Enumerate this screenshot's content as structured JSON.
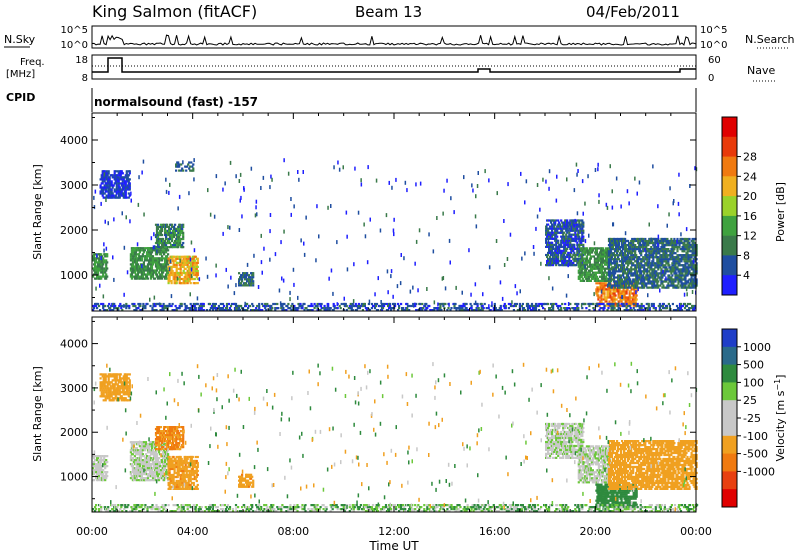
{
  "header": {
    "station": "King Salmon (fitACF)",
    "beam": "Beam 13",
    "date": "04/Feb/2011"
  },
  "top_panels": {
    "nsky_label": "N.Sky",
    "nsearch_label": "N.Search",
    "nsky_ticks": [
      "10^5",
      "10^0"
    ],
    "freq_label_1": "Freq.",
    "freq_label_2": "[MHz]",
    "freq_ticks": [
      "18",
      "8"
    ],
    "nave_label": "Nave",
    "nave_ticks": [
      "60",
      "0"
    ],
    "cpid_label": "CPID",
    "cpid_text": "normalsound (fast) -157"
  },
  "x_axis": {
    "label": "Time UT",
    "ticks": [
      "00:00",
      "04:00",
      "08:00",
      "12:00",
      "16:00",
      "20:00",
      "00:00"
    ]
  },
  "colors": {
    "power_scale": [
      "#1f1fff",
      "#1f4ea0",
      "#3a7a4a",
      "#3fa23f",
      "#9ad22a",
      "#f0b020",
      "#f07a10",
      "#e83a0a",
      "#e00000"
    ],
    "velocity_scale": [
      "#1f3ec8",
      "#2a6a8a",
      "#2e8a3e",
      "#6cc83a",
      "#c8c8c8",
      "#c8c8c8",
      "#f0a020",
      "#f07a10",
      "#e84010",
      "#e00000"
    ]
  },
  "chart_data": [
    {
      "type": "heatmap",
      "name": "power",
      "xlabel": "Time UT",
      "ylabel": "Slant Range [km]",
      "xlim": [
        0,
        24
      ],
      "ylim": [
        200,
        4600
      ],
      "yticks": [
        1000,
        2000,
        3000,
        4000
      ],
      "colorbar": {
        "label": "Power [dB]",
        "ticks": [
          "4",
          "8",
          "12",
          "16",
          "20",
          "24",
          "28"
        ],
        "range": [
          0,
          32
        ]
      },
      "regions": [
        {
          "t0": 0.0,
          "t1": 0.6,
          "r0": 900,
          "r1": 1450,
          "level": 12
        },
        {
          "t0": 0.3,
          "t1": 1.5,
          "r0": 2700,
          "r1": 3300,
          "level": 4
        },
        {
          "t0": 1.5,
          "t1": 3.0,
          "r0": 900,
          "r1": 1600,
          "level": 12
        },
        {
          "t0": 2.5,
          "t1": 3.6,
          "r0": 1600,
          "r1": 2100,
          "level": 10
        },
        {
          "t0": 3.0,
          "t1": 4.2,
          "r0": 800,
          "r1": 1400,
          "level": 22
        },
        {
          "t0": 3.3,
          "t1": 4.0,
          "r0": 3300,
          "r1": 3500,
          "level": 8
        },
        {
          "t0": 5.8,
          "t1": 6.4,
          "r0": 750,
          "r1": 1050,
          "level": 8
        },
        {
          "t0": 18.0,
          "t1": 19.5,
          "r0": 1200,
          "r1": 2200,
          "level": 6
        },
        {
          "t0": 19.3,
          "t1": 20.6,
          "r0": 850,
          "r1": 1600,
          "level": 12
        },
        {
          "t0": 20.0,
          "t1": 21.6,
          "r0": 300,
          "r1": 800,
          "level": 26
        },
        {
          "t0": 20.5,
          "t1": 24.0,
          "r0": 700,
          "r1": 1800,
          "level": 8
        },
        {
          "t0": 0.0,
          "t1": 24.0,
          "r0": 200,
          "r1": 380,
          "level": 6
        }
      ]
    },
    {
      "type": "heatmap",
      "name": "velocity",
      "xlabel": "Time UT",
      "ylabel": "Slant Range [km]",
      "xlim": [
        0,
        24
      ],
      "ylim": [
        200,
        4600
      ],
      "yticks": [
        1000,
        2000,
        3000,
        4000
      ],
      "colorbar": {
        "label": "Velocity [m s-1]",
        "ticks": [
          "1000",
          "500",
          "100",
          "25",
          "-25",
          "-100",
          "-500",
          "-1000"
        ],
        "range": [
          -1000,
          1000
        ]
      },
      "regions": [
        {
          "t0": 0.0,
          "t1": 0.6,
          "r0": 900,
          "r1": 1450,
          "level": 0
        },
        {
          "t0": 0.3,
          "t1": 1.5,
          "r0": 2700,
          "r1": 3300,
          "level": -200
        },
        {
          "t0": 1.5,
          "t1": 3.0,
          "r0": 900,
          "r1": 1800,
          "level": 0
        },
        {
          "t0": 2.5,
          "t1": 3.6,
          "r0": 1600,
          "r1": 2100,
          "level": -300
        },
        {
          "t0": 3.0,
          "t1": 4.2,
          "r0": 700,
          "r1": 1450,
          "level": -250
        },
        {
          "t0": 5.8,
          "t1": 6.4,
          "r0": 750,
          "r1": 1050,
          "level": -250
        },
        {
          "t0": 18.0,
          "t1": 19.5,
          "r0": 1400,
          "r1": 2200,
          "level": 0
        },
        {
          "t0": 19.3,
          "t1": 20.6,
          "r0": 850,
          "r1": 1700,
          "level": 0
        },
        {
          "t0": 20.0,
          "t1": 21.6,
          "r0": 300,
          "r1": 800,
          "level": 150
        },
        {
          "t0": 20.5,
          "t1": 24.0,
          "r0": 700,
          "r1": 1800,
          "level": -200
        },
        {
          "t0": 0.0,
          "t1": 24.0,
          "r0": 200,
          "r1": 380,
          "level": 50
        }
      ]
    }
  ]
}
